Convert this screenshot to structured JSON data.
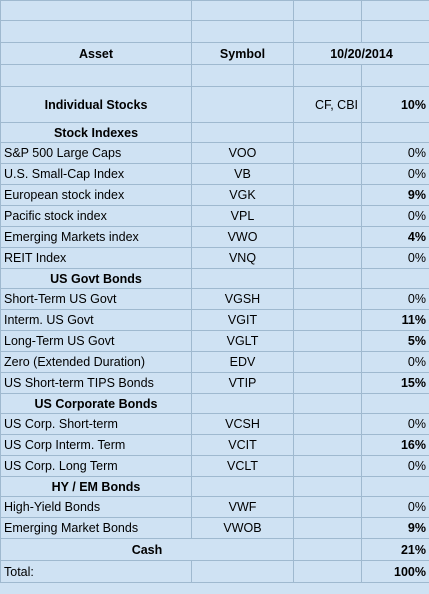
{
  "header": {
    "asset": "Asset",
    "symbol": "Symbol",
    "date": "10/20/2014"
  },
  "individual": {
    "label": "Individual Stocks",
    "symbol": "CF, CBI",
    "value": "10%",
    "highlight": true
  },
  "sections": [
    {
      "title": "Stock Indexes",
      "rows": [
        {
          "asset": "S&P 500 Large Caps",
          "symbol": "VOO",
          "value": "0%",
          "highlight": false
        },
        {
          "asset": "U.S. Small-Cap Index",
          "symbol": "VB",
          "value": "0%",
          "highlight": false
        },
        {
          "asset": "European stock index",
          "symbol": "VGK",
          "value": "9%",
          "highlight": true
        },
        {
          "asset": "Pacific stock index",
          "symbol": "VPL",
          "value": "0%",
          "highlight": false
        },
        {
          "asset": "Emerging Markets index",
          "symbol": "VWO",
          "value": "4%",
          "highlight": true
        },
        {
          "asset": "REIT Index",
          "symbol": "VNQ",
          "value": "0%",
          "highlight": false
        }
      ]
    },
    {
      "title": "US Govt Bonds",
      "rows": [
        {
          "asset": "Short-Term US Govt",
          "symbol": "VGSH",
          "value": "0%",
          "highlight": false
        },
        {
          "asset": "Interm. US Govt",
          "symbol": "VGIT",
          "value": "11%",
          "highlight": true
        },
        {
          "asset": "Long-Term US Govt",
          "symbol": "VGLT",
          "value": "5%",
          "highlight": true
        },
        {
          "asset": "Zero (Extended Duration)",
          "symbol": "EDV",
          "value": "0%",
          "highlight": false
        },
        {
          "asset": "US Short-term TIPS Bonds",
          "symbol": "VTIP",
          "value": "15%",
          "highlight": true
        }
      ]
    },
    {
      "title": "US Corporate Bonds",
      "rows": [
        {
          "asset": "US Corp. Short-term",
          "symbol": "VCSH",
          "value": "0%",
          "highlight": false
        },
        {
          "asset": "US Corp Interm. Term",
          "symbol": "VCIT",
          "value": "16%",
          "highlight": true
        },
        {
          "asset": "US Corp. Long Term",
          "symbol": "VCLT",
          "value": "0%",
          "highlight": false
        }
      ]
    },
    {
      "title": "HY / EM Bonds",
      "rows": [
        {
          "asset": "High-Yield Bonds",
          "symbol": "VWF",
          "value": "0%",
          "highlight": false
        },
        {
          "asset": "Emerging Market Bonds",
          "symbol": "VWOB",
          "value": "9%",
          "highlight": true
        }
      ]
    }
  ],
  "cash": {
    "label": "Cash",
    "value": "21%",
    "highlight": true
  },
  "total": {
    "label": "Total:",
    "value": "100%",
    "highlight": true
  },
  "colors": {
    "cell_bg": "#cfe2f3",
    "highlight": "#f4cccc",
    "gridline": "#9fb9cf",
    "selection": "#4a86e8"
  }
}
